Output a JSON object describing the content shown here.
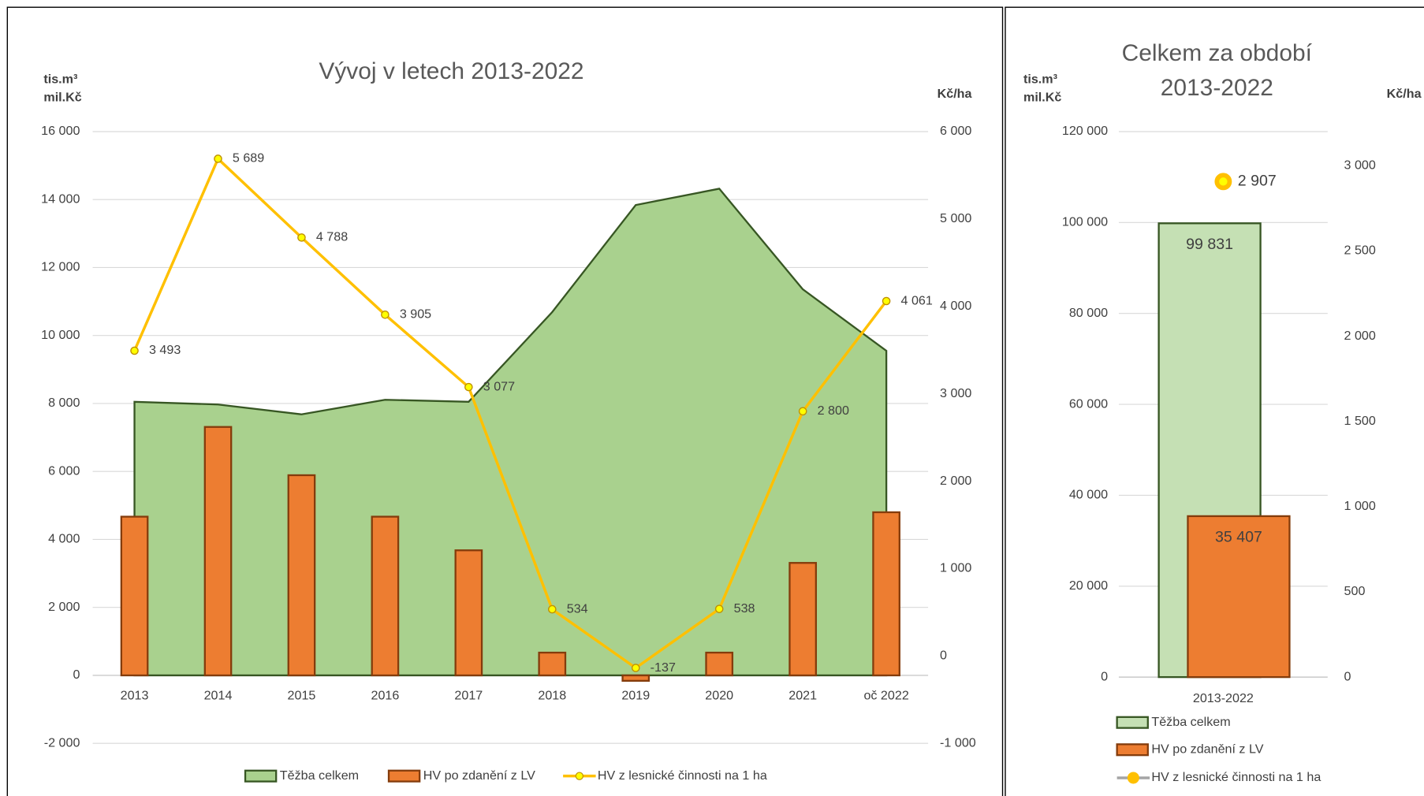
{
  "chart_data": [
    {
      "type": "combo",
      "title_lines": [
        "Vývoj v letech 2013-2022"
      ],
      "ylabel_lines": [
        "tis.m³",
        "mil.Kč"
      ],
      "y2label": "Kč/ha",
      "categories": [
        "2013",
        "2014",
        "2015",
        "2016",
        "2017",
        "2018",
        "2019",
        "2020",
        "2021",
        "oč 2022"
      ],
      "series": [
        {
          "name": "Těžba celkem",
          "type": "area",
          "color": "#a9d18e",
          "stroke": "#375623",
          "values": [
            8050,
            7970,
            7680,
            8110,
            8050,
            10690,
            13840,
            14320,
            11360,
            9550
          ]
        },
        {
          "name": "HV po zdanění z LV",
          "type": "bar",
          "color": "#ed7d31",
          "stroke": "#843c0c",
          "values": [
            4670,
            7310,
            5890,
            4670,
            3680,
            670,
            -160,
            670,
            3310,
            4800
          ]
        },
        {
          "name": "HV z lesnické činnosti na 1 ha",
          "type": "line",
          "axis": "y2",
          "color": "#ffc000",
          "marker_color": "#ffff00",
          "values": [
            3493,
            5689,
            4788,
            3905,
            3077,
            534,
            -137,
            538,
            2800,
            4061
          ],
          "value_labels": [
            "3 493",
            "5 689",
            "4 788",
            "3 905",
            "3 077",
            "534",
            "-137",
            "538",
            "2 800",
            "4 061"
          ]
        }
      ],
      "ylim": [
        -2000,
        16000
      ],
      "yticks": [
        {
          "value": -2000,
          "label": "-2 000"
        },
        0,
        {
          "value": 2000,
          "label": "2 000"
        },
        {
          "value": 4000,
          "label": "4 000"
        },
        {
          "value": 6000,
          "label": "6 000"
        },
        {
          "value": 8000,
          "label": "8 000"
        },
        {
          "value": 10000,
          "label": "10 000"
        },
        {
          "value": 12000,
          "label": "12 000"
        },
        {
          "value": 14000,
          "label": "14 000"
        },
        {
          "value": 16000,
          "label": "16 000"
        }
      ],
      "y2lim": [
        -1000,
        6000
      ],
      "y2ticks": [
        {
          "value": -1000,
          "label": "-1 000"
        },
        0,
        {
          "value": 1000,
          "label": "1 000"
        },
        {
          "value": 2000,
          "label": "2 000"
        },
        {
          "value": 3000,
          "label": "3 000"
        },
        {
          "value": 4000,
          "label": "4 000"
        },
        {
          "value": 5000,
          "label": "5 000"
        },
        {
          "value": 6000,
          "label": "6 000"
        }
      ],
      "grid": true,
      "legend": "bottom"
    },
    {
      "type": "combo",
      "title_lines": [
        "Celkem za období",
        "2013-2022"
      ],
      "ylabel_lines": [
        "tis.m³",
        "mil.Kč"
      ],
      "y2label": "Kč/ha",
      "categories": [
        "2013-2022"
      ],
      "series": [
        {
          "name": "Těžba celkem",
          "type": "bar",
          "color": "#c5e0b4",
          "stroke": "#375623",
          "values": [
            99831
          ],
          "value_labels": [
            "99 831"
          ]
        },
        {
          "name": "HV po zdanění z LV",
          "type": "bar",
          "color": "#ed7d31",
          "stroke": "#843c0c",
          "values": [
            35407
          ],
          "value_labels": [
            "35 407"
          ]
        },
        {
          "name": "HV z lesnické činnosti na 1 ha",
          "type": "line",
          "axis": "y2",
          "color": "#a5a5a5",
          "marker_color": "#ffc000",
          "values": [
            2907
          ],
          "value_labels": [
            "2 907"
          ]
        }
      ],
      "ylim": [
        0,
        120000
      ],
      "yticks": [
        0,
        {
          "value": 20000,
          "label": "20 000"
        },
        {
          "value": 40000,
          "label": "40 000"
        },
        {
          "value": 60000,
          "label": "60 000"
        },
        {
          "value": 80000,
          "label": "80 000"
        },
        {
          "value": 100000,
          "label": "100 000"
        },
        {
          "value": 120000,
          "label": "120 000"
        }
      ],
      "y2lim": [
        0,
        3200
      ],
      "y2ticks": [
        0,
        500,
        {
          "value": 1000,
          "label": "1 000"
        },
        {
          "value": 1500,
          "label": "1 500"
        },
        {
          "value": 2000,
          "label": "2 000"
        },
        {
          "value": 2500,
          "label": "2 500"
        },
        {
          "value": 3000,
          "label": "3 000"
        }
      ],
      "grid": true,
      "legend": "bottom-left"
    }
  ]
}
